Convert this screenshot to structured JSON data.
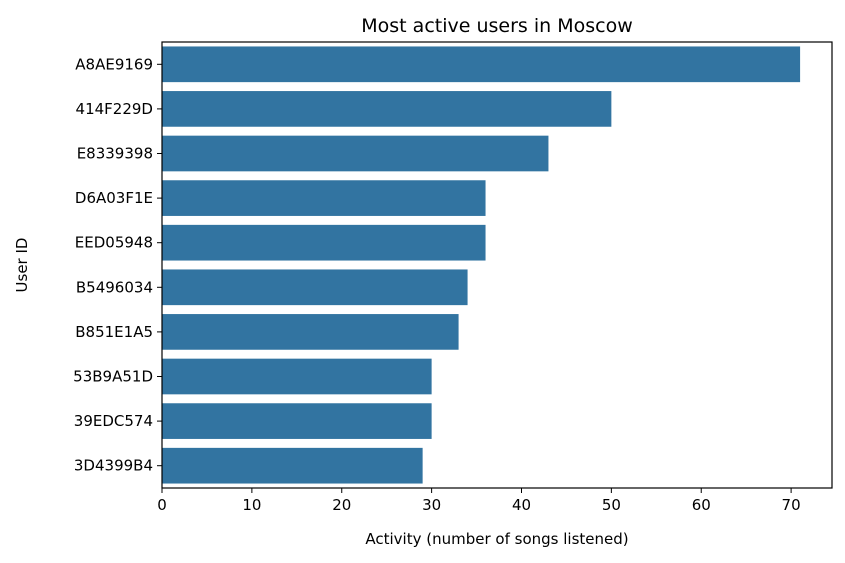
{
  "chart_data": {
    "type": "bar",
    "orientation": "horizontal",
    "title": "Most active users in Moscow",
    "xlabel": "Activity (number of songs listened)",
    "ylabel": "User ID",
    "categories": [
      "A8AE9169",
      "414F229D",
      "E8339398",
      "D6A03F1E",
      "EED05948",
      "B5496034",
      "B851E1A5",
      "53B9A51D",
      "39EDC574",
      "3D4399B4"
    ],
    "values": [
      71,
      50,
      43,
      36,
      36,
      34,
      33,
      30,
      30,
      29
    ],
    "xlim": [
      0,
      74.55
    ],
    "xticks": [
      0,
      10,
      20,
      30,
      40,
      50,
      60,
      70
    ],
    "grid": false,
    "bar_color": "#3274a1"
  }
}
